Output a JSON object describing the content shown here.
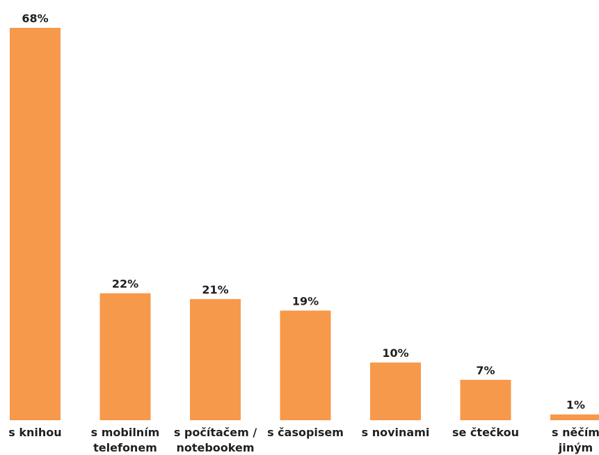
{
  "chart_data": {
    "type": "bar",
    "title": "",
    "xlabel": "",
    "ylabel": "",
    "ylim": [
      0,
      68
    ],
    "grid": false,
    "legend": "none",
    "bar_color": "#F7994A",
    "text_color": "#1f1f1f",
    "categories": [
      [
        "s knihou"
      ],
      [
        "s mobilním",
        "telefonem"
      ],
      [
        "s počítačem /",
        "notebookem"
      ],
      [
        "s časopisem"
      ],
      [
        "s novinami"
      ],
      [
        "se čtečkou"
      ],
      [
        "s něčím",
        "jiným"
      ]
    ],
    "values": [
      68,
      22,
      21,
      19,
      10,
      7,
      1
    ],
    "value_labels": [
      "68%",
      "22%",
      "21%",
      "19%",
      "10%",
      "7%",
      "1%"
    ]
  }
}
